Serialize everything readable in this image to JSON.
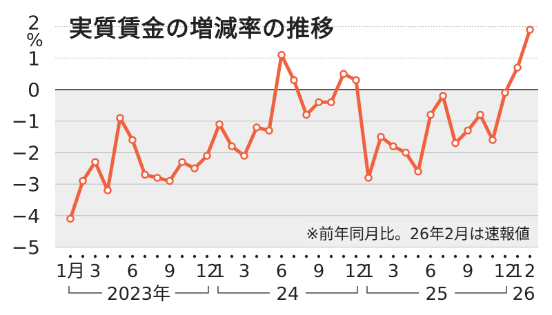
{
  "title": "実質賃金の増減率の推移",
  "note": "※前年同月比。26年2月は速報値",
  "unit": "%",
  "colors": {
    "line": "#f0623f",
    "shade": "#eeeeee",
    "zero": "#555555"
  },
  "chart_data": {
    "type": "line",
    "title": "実質賃金の増減率の推移",
    "ylabel": "%",
    "ylim": [
      -5,
      2
    ],
    "yticks": [
      "2",
      "1",
      "0",
      "−1",
      "−2",
      "−3",
      "−4",
      "−5"
    ],
    "x_tick_labels": [
      {
        "i": 0,
        "label": "1月"
      },
      {
        "i": 2,
        "label": "3"
      },
      {
        "i": 5,
        "label": "6"
      },
      {
        "i": 8,
        "label": "9"
      },
      {
        "i": 11,
        "label": "12"
      },
      {
        "i": 12,
        "label": "1"
      },
      {
        "i": 14,
        "label": "3"
      },
      {
        "i": 17,
        "label": "6"
      },
      {
        "i": 20,
        "label": "9"
      },
      {
        "i": 23,
        "label": "12"
      },
      {
        "i": 24,
        "label": "1"
      },
      {
        "i": 26,
        "label": "3"
      },
      {
        "i": 29,
        "label": "6"
      },
      {
        "i": 32,
        "label": "9"
      },
      {
        "i": 35,
        "label": "12"
      },
      {
        "i": 36,
        "label": "1"
      },
      {
        "i": 37,
        "label": "2"
      }
    ],
    "year_groups": [
      {
        "label": "2023年",
        "start": 0,
        "end": 11
      },
      {
        "label": "24",
        "start": 12,
        "end": 23
      },
      {
        "label": "25",
        "start": 24,
        "end": 35
      },
      {
        "label": "26",
        "start": 36,
        "end": 37
      }
    ],
    "series": [
      {
        "values": [
          -4.1,
          -2.9,
          -2.3,
          -3.2,
          -0.9,
          -1.6,
          -2.7,
          -2.8,
          -2.9,
          -2.3,
          -2.5,
          -2.1,
          -1.1,
          -1.8,
          -2.1,
          -1.2,
          -1.3,
          1.1,
          0.3,
          -0.8,
          -0.4,
          -0.4,
          0.5,
          0.3,
          -2.8,
          -1.5,
          -1.8,
          -2.0,
          -2.6,
          -0.8,
          -0.2,
          -1.7,
          -1.3,
          -0.8,
          -1.6,
          -0.1,
          0.7,
          1.9
        ]
      }
    ]
  }
}
